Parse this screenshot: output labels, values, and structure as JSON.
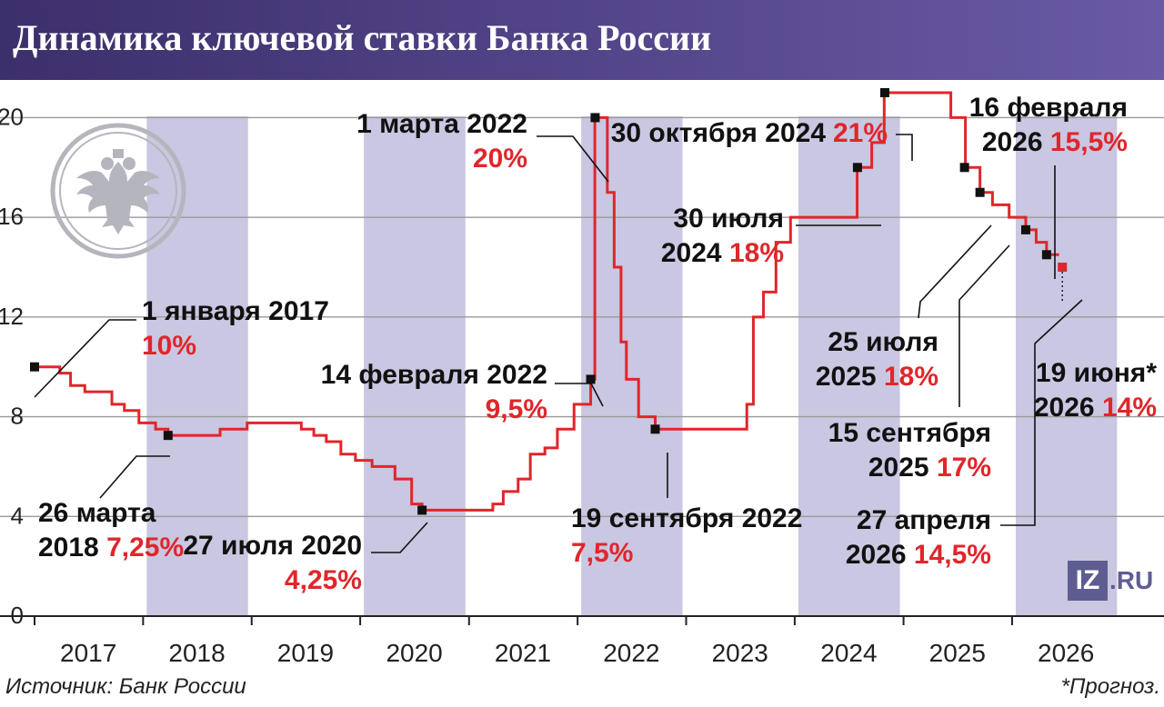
{
  "title": "Динамика ключевой ставки Банка России",
  "source": "Источник: Банк России",
  "forecast_note": "*Прогноз.",
  "logo": {
    "mark": "IZ",
    "domain": ".RU"
  },
  "colors": {
    "line": "#e0262a",
    "band": "#c9c7e1",
    "header_start": "#3c2f6b",
    "header_end": "#6a5aa6",
    "marker": "#111111",
    "forecast_marker": "#e0262a",
    "emblem": "#b5b5bd"
  },
  "emblem_icon": "double-headed-eagle-icon",
  "chart_data": {
    "type": "line",
    "step": true,
    "title": "Динамика ключевой ставки Банка России",
    "xlabel": "",
    "ylabel": "",
    "ylim": [
      0,
      21
    ],
    "yticks": [
      0,
      4,
      8,
      12,
      16,
      20
    ],
    "xlim": [
      "2017-01-01",
      "2026-12-31"
    ],
    "xticks": [
      "2017",
      "2018",
      "2019",
      "2020",
      "2021",
      "2022",
      "2023",
      "2024",
      "2025",
      "2026"
    ],
    "grid": true,
    "shaded_years": [
      "2018",
      "2020",
      "2022",
      "2024",
      "2026"
    ],
    "series": [
      {
        "points": [
          [
            "2017-01-01",
            10
          ],
          [
            "2017-03-27",
            9.75
          ],
          [
            "2017-05-02",
            9.25
          ],
          [
            "2017-06-19",
            9.0
          ],
          [
            "2017-09-18",
            8.5
          ],
          [
            "2017-10-30",
            8.25
          ],
          [
            "2017-12-18",
            7.75
          ],
          [
            "2018-02-12",
            7.5
          ],
          [
            "2018-03-26",
            7.25
          ],
          [
            "2018-09-17",
            7.5
          ],
          [
            "2018-12-17",
            7.75
          ],
          [
            "2019-06-17",
            7.5
          ],
          [
            "2019-07-29",
            7.25
          ],
          [
            "2019-09-09",
            7.0
          ],
          [
            "2019-10-28",
            6.5
          ],
          [
            "2019-12-16",
            6.25
          ],
          [
            "2020-02-10",
            6.0
          ],
          [
            "2020-04-27",
            5.5
          ],
          [
            "2020-06-22",
            4.5
          ],
          [
            "2020-07-27",
            4.25
          ],
          [
            "2021-03-22",
            4.5
          ],
          [
            "2021-04-26",
            5.0
          ],
          [
            "2021-06-15",
            5.5
          ],
          [
            "2021-07-26",
            6.5
          ],
          [
            "2021-09-13",
            6.75
          ],
          [
            "2021-10-25",
            7.5
          ],
          [
            "2021-12-20",
            8.5
          ],
          [
            "2022-02-14",
            9.5
          ],
          [
            "2022-02-28",
            20.0
          ],
          [
            "2022-04-11",
            17.0
          ],
          [
            "2022-05-04",
            14.0
          ],
          [
            "2022-05-27",
            11.0
          ],
          [
            "2022-06-14",
            9.5
          ],
          [
            "2022-07-25",
            8.0
          ],
          [
            "2022-09-19",
            7.5
          ],
          [
            "2023-07-24",
            8.5
          ],
          [
            "2023-08-15",
            12.0
          ],
          [
            "2023-09-18",
            13.0
          ],
          [
            "2023-10-30",
            15.0
          ],
          [
            "2023-12-18",
            16.0
          ],
          [
            "2024-07-29",
            18.0
          ],
          [
            "2024-09-16",
            19.0
          ],
          [
            "2024-10-28",
            21.0
          ],
          [
            "2025-06-09",
            20.0
          ],
          [
            "2025-07-28",
            18.0
          ],
          [
            "2025-09-15",
            17.0
          ],
          [
            "2025-10-27",
            16.5
          ],
          [
            "2025-12-22",
            16.0
          ],
          [
            "2026-02-16",
            15.5
          ],
          [
            "2026-03-23",
            15.0
          ],
          [
            "2026-04-27",
            14.5
          ],
          [
            "2026-06-08",
            14.5
          ]
        ]
      }
    ],
    "forecast": {
      "date": "2026-06-19",
      "value": 14
    },
    "annotations": [
      {
        "id": "ann-2017",
        "date_label": "1 января 2017",
        "value_label": "10%"
      },
      {
        "id": "ann-2018",
        "date_label": "26 марта",
        "date_label2": "2018",
        "value_label": "7,25%"
      },
      {
        "id": "ann-2020",
        "date_label": "27 июля 2020",
        "value_label": "4,25%"
      },
      {
        "id": "ann-feb22",
        "date_label": "14 февраля 2022",
        "value_label": "9,5%"
      },
      {
        "id": "ann-mar22",
        "date_label": "1 марта 2022",
        "value_label": "20%"
      },
      {
        "id": "ann-sep22",
        "date_label": "19 сентября 2022",
        "value_label": "7,5%"
      },
      {
        "id": "ann-jul24",
        "date_label": "30 июля",
        "date_label2": "2024",
        "value_label": "18%"
      },
      {
        "id": "ann-oct24",
        "date_label": "30 октября 2024",
        "value_label": "21%"
      },
      {
        "id": "ann-jul25",
        "date_label": "25 июля",
        "date_label2": "2025",
        "value_label": "18%"
      },
      {
        "id": "ann-sep25",
        "date_label": "15 сентября",
        "date_label2": "2025",
        "value_label": "17%"
      },
      {
        "id": "ann-feb26",
        "date_label": "16 февраля",
        "date_label2": "2026",
        "value_label": "15,5%"
      },
      {
        "id": "ann-apr26",
        "date_label": "27 апреля",
        "date_label2": "2026",
        "value_label": "14,5%"
      },
      {
        "id": "ann-jun26",
        "date_label": "19 июня*",
        "date_label2": "2026",
        "value_label": "14%"
      }
    ]
  }
}
